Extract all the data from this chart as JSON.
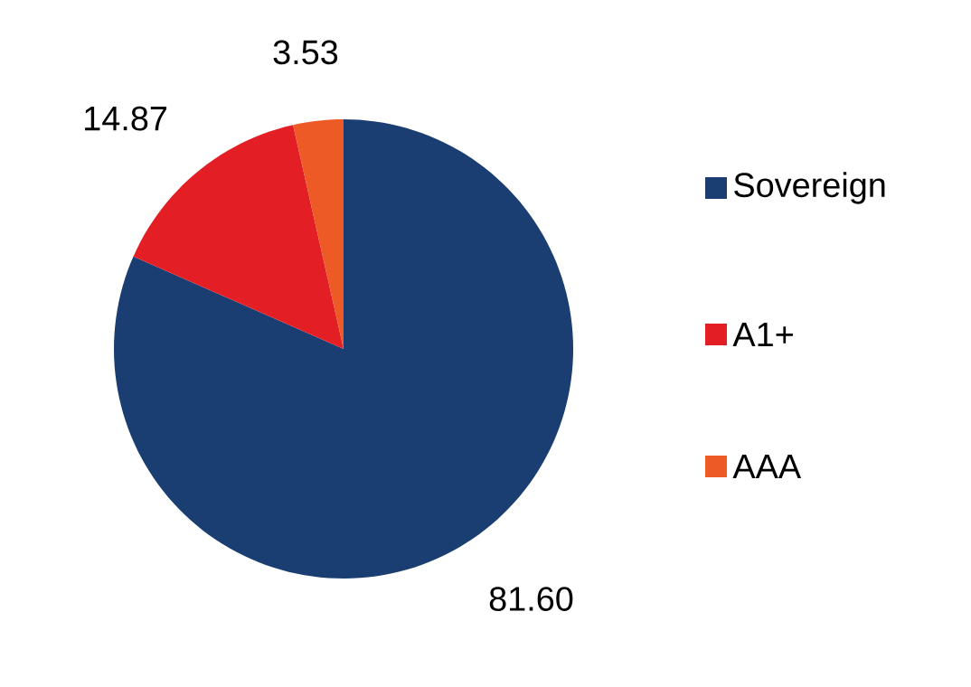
{
  "chart_data": {
    "type": "pie",
    "categories": [
      "Sovereign",
      "A1+",
      "AAA"
    ],
    "values": [
      81.6,
      14.87,
      3.53
    ],
    "value_labels": [
      "81.60",
      "14.87",
      "3.53"
    ],
    "colors": [
      "#1a3e72",
      "#e31e24",
      "#ee5a26"
    ],
    "legend": "right"
  }
}
